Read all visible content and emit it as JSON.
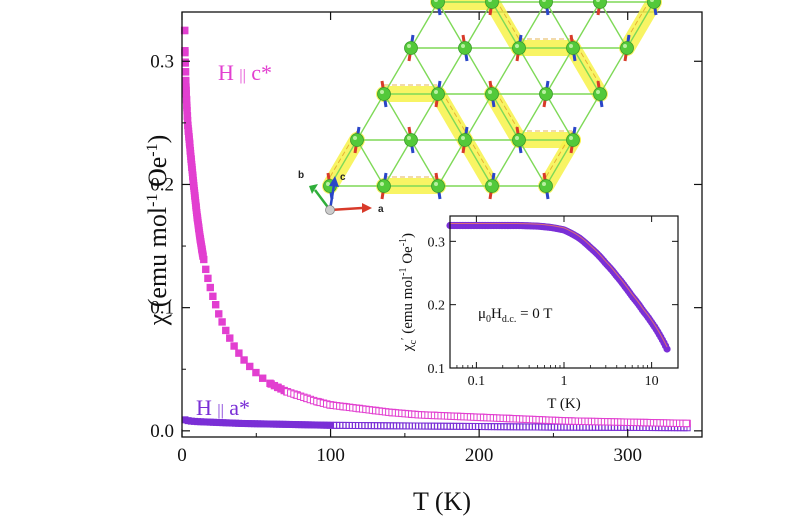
{
  "chart_data": [
    {
      "type": "scatter",
      "xlabel": "T (K)",
      "ylabel_parts": {
        "main": "χ (emu mol",
        "sup1": "-1",
        "mid": " Oe",
        "sup2": "-1",
        "end": ")"
      },
      "xlim": [
        0,
        350
      ],
      "ylim": [
        -0.005,
        0.34
      ],
      "xticks": [
        0,
        100,
        200,
        300
      ],
      "yticks": [
        0.0,
        0.1,
        0.2,
        0.3
      ],
      "ytick_labels": [
        "0.0",
        "0.1",
        "0.2",
        "0.3"
      ],
      "series": [
        {
          "name": "H || c*",
          "label_parts": {
            "pre": "H ",
            "par": "||",
            "post": " c*"
          },
          "color": "#e23fd0",
          "x": [
            1.8,
            2,
            2.5,
            3,
            3.5,
            4,
            5,
            6,
            7,
            8,
            9,
            10,
            12,
            14,
            16,
            18,
            20,
            25,
            30,
            35,
            40,
            45,
            50,
            55,
            60,
            70,
            80,
            90,
            100,
            120,
            140,
            160,
            180,
            200,
            220,
            240,
            260,
            280,
            300,
            320,
            340
          ],
          "values": [
            0.325,
            0.305,
            0.285,
            0.27,
            0.258,
            0.247,
            0.235,
            0.222,
            0.21,
            0.198,
            0.187,
            0.176,
            0.158,
            0.143,
            0.131,
            0.121,
            0.112,
            0.094,
            0.08,
            0.069,
            0.06,
            0.053,
            0.047,
            0.042,
            0.038,
            0.032,
            0.028,
            0.024,
            0.021,
            0.018,
            0.015,
            0.013,
            0.012,
            0.011,
            0.01,
            0.009,
            0.008,
            0.0075,
            0.007,
            0.0065,
            0.006
          ]
        },
        {
          "name": "H || a*",
          "label_parts": {
            "pre": "H ",
            "par": "||",
            "post": " a*"
          },
          "color": "#7a2fd6",
          "x": [
            1.8,
            5,
            10,
            20,
            40,
            60,
            80,
            100,
            150,
            200,
            250,
            300,
            340
          ],
          "values": [
            0.009,
            0.008,
            0.0075,
            0.007,
            0.006,
            0.0055,
            0.005,
            0.0045,
            0.004,
            0.0035,
            0.003,
            0.0028,
            0.0025
          ]
        }
      ]
    },
    {
      "type": "line",
      "xlabel": "T (K)",
      "ylabel_parts": {
        "main": "χ",
        "sub": "c",
        "prime": "′",
        "open": " (emu mol",
        "sup1": "-1",
        "mid": " Oe",
        "sup2": "-1",
        "end": ")"
      },
      "xscale": "log",
      "xlim": [
        0.05,
        20
      ],
      "ylim": [
        0.1,
        0.34
      ],
      "xticks": [
        0.1,
        1,
        10
      ],
      "xtick_labels": [
        "0.1",
        "1",
        "10"
      ],
      "yticks": [
        0.1,
        0.2,
        0.3
      ],
      "ytick_labels": [
        "0.1",
        "0.2",
        "0.3"
      ],
      "annotation_parts": {
        "mu": "μ",
        "zero": "0",
        "H": "H",
        "dc": "d.c.",
        "rest": " = 0 T"
      },
      "series": [
        {
          "color": "#7a2fd6",
          "x": [
            0.05,
            0.1,
            0.2,
            0.3,
            0.5,
            0.7,
            1,
            1.5,
            2,
            3,
            4,
            5,
            6,
            8,
            10,
            12,
            15
          ],
          "values": [
            0.325,
            0.325,
            0.325,
            0.325,
            0.324,
            0.322,
            0.318,
            0.305,
            0.29,
            0.265,
            0.245,
            0.228,
            0.213,
            0.19,
            0.172,
            0.155,
            0.13
          ]
        }
      ]
    }
  ],
  "crystal_axes": {
    "a": "a",
    "b": "b",
    "c": "c"
  },
  "colors": {
    "frame": "#111111",
    "lattice_line": "#7ed957",
    "atom": "#53c93a",
    "highlight": "#f7f34a",
    "arrow_red": "#d83a2a",
    "arrow_blue": "#2a45c8",
    "arrow_green": "#2fae3a"
  }
}
